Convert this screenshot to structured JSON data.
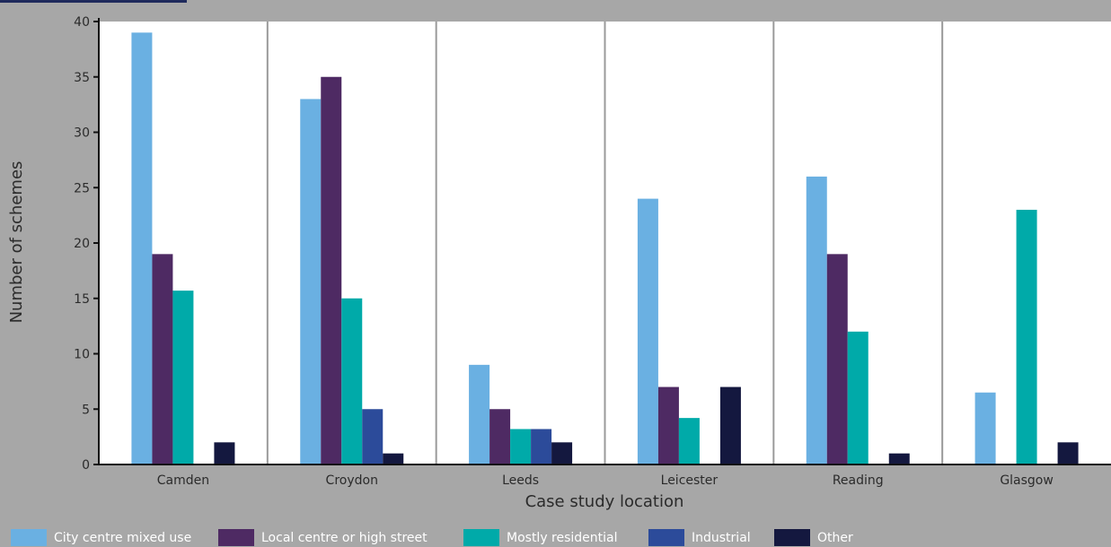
{
  "chart_data": {
    "type": "bar",
    "xlabel": "Case study location",
    "ylabel": "Number of schemes",
    "ylim": [
      0,
      40
    ],
    "yticks": [
      0,
      5,
      10,
      15,
      20,
      25,
      30,
      35,
      40
    ],
    "grid": "vertical",
    "legend_position": "bottom",
    "categories": [
      "Camden",
      "Croydon",
      "Leeds",
      "Leicester",
      "Reading",
      "Glasgow"
    ],
    "series": [
      {
        "name": "City centre mixed use",
        "color": "#6ab0e2",
        "values": [
          39,
          33,
          9,
          24,
          26,
          6.5
        ]
      },
      {
        "name": "Local centre or high street",
        "color": "#4e2a63",
        "values": [
          19,
          35,
          5,
          7,
          19,
          0
        ]
      },
      {
        "name": "Mostly residential",
        "color": "#00aaa9",
        "values": [
          15.7,
          15,
          3.2,
          4.2,
          12,
          23
        ]
      },
      {
        "name": "Industrial",
        "color": "#2c4b9a",
        "values": [
          0,
          5,
          3.2,
          0,
          0,
          0
        ]
      },
      {
        "name": "Other",
        "color": "#14183f",
        "values": [
          2,
          1,
          2,
          7,
          1,
          2
        ]
      }
    ]
  }
}
